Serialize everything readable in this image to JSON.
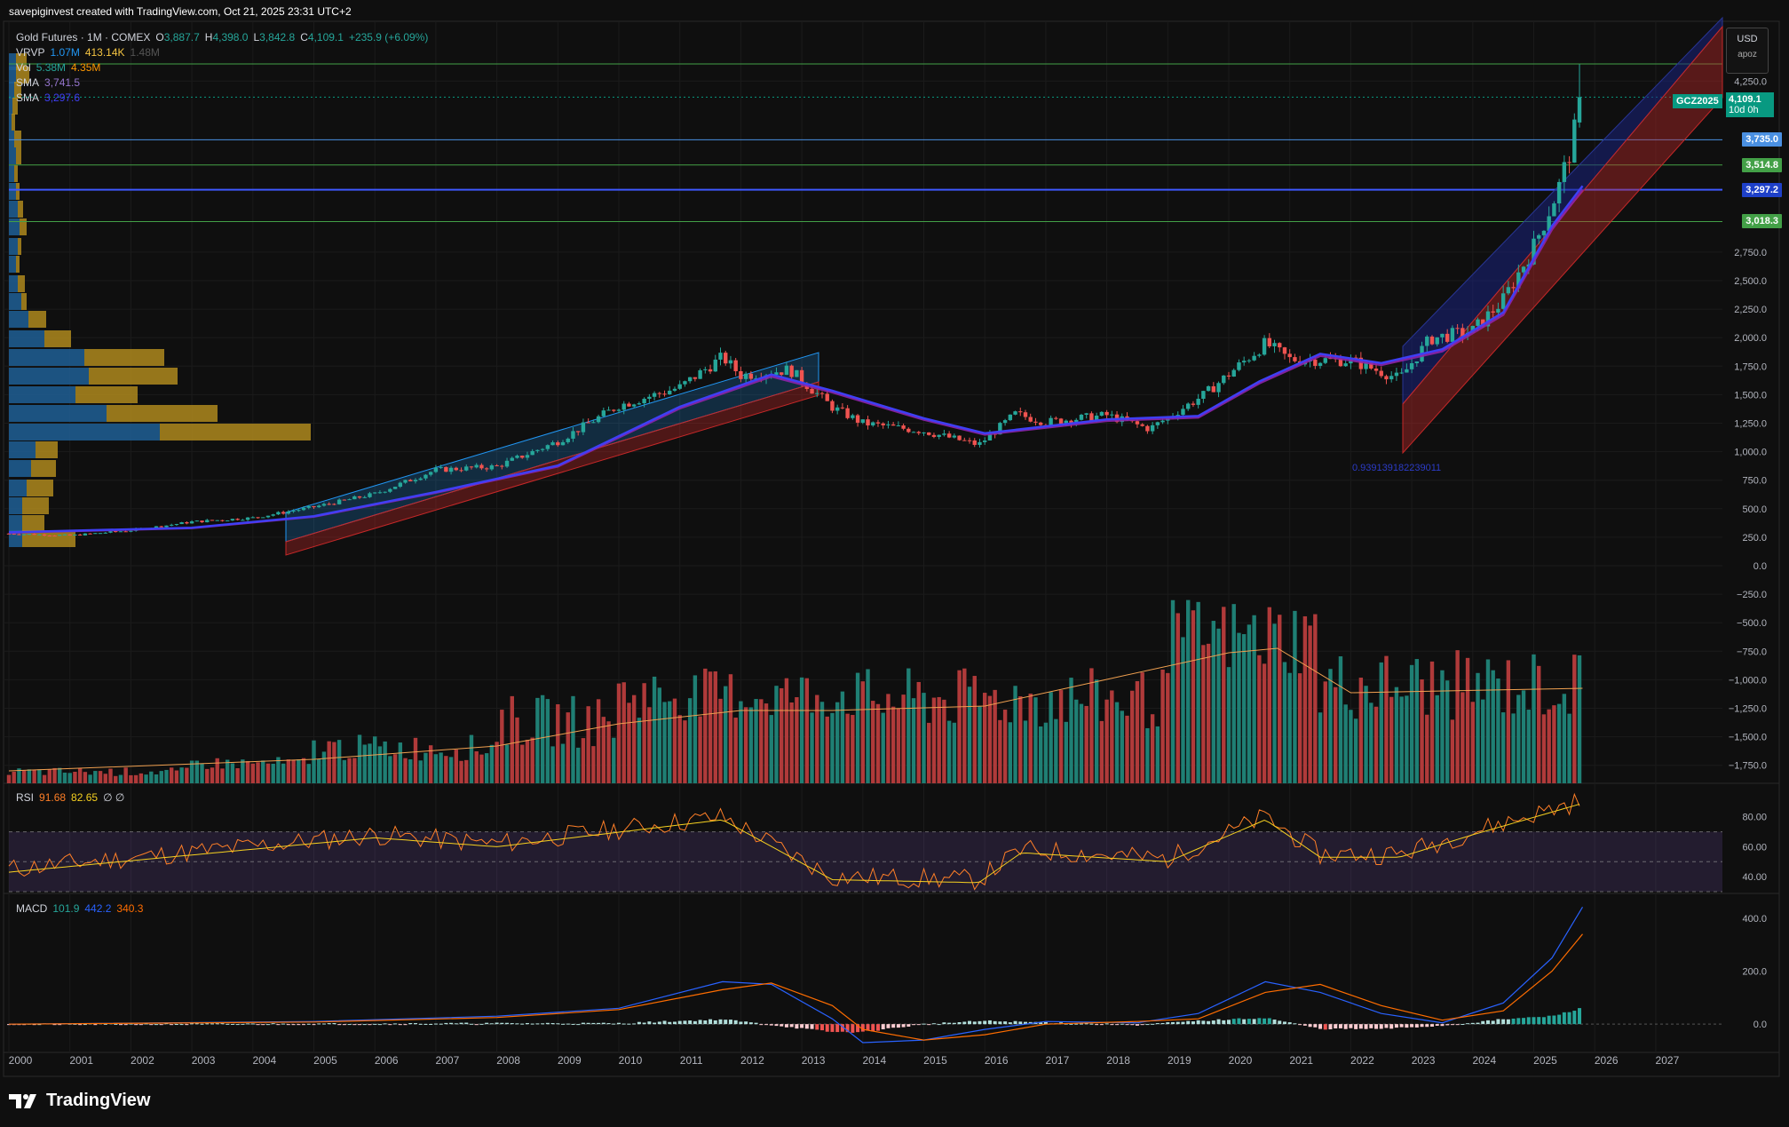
{
  "header": {
    "credit": "savepiginvest created with TradingView.com, Oct 21, 2025 23:31 UTC+2"
  },
  "legend": {
    "symbol": "Gold Futures · 1M · COMEX",
    "o_label": "O",
    "o": "3,887.7",
    "h_label": "H",
    "h": "4,398.0",
    "l_label": "L",
    "l": "3,842.8",
    "c_label": "C",
    "c": "4,109.1",
    "chg": "+235.9 (+6.09%)",
    "vrvp_label": "VRVP",
    "vrvp_a": "1.07M",
    "vrvp_b": "413.14K",
    "vrvp_c": "1.48M",
    "vol_label": "Vol",
    "vol_a": "5.38M",
    "vol_b": "4.35M",
    "sma1_label": "SMA",
    "sma1": "3,741.5",
    "sma2_label": "SMA",
    "sma2": "3,297.6",
    "rsi_label": "RSI",
    "rsi_a": "91.68",
    "rsi_b": "82.65",
    "rsi_c": "∅ ∅",
    "macd_label": "MACD",
    "macd_a": "101.9",
    "macd_b": "442.2",
    "macd_c": "340.3"
  },
  "currency": {
    "code": "USD",
    "sub": "apoz"
  },
  "price_labels": {
    "ticker": "GCZ2025",
    "last": "4,109.1",
    "countdown": "10d 0h",
    "lines": [
      {
        "value": "3,735.0",
        "color": "#4a90e2"
      },
      {
        "value": "3,514.8",
        "color": "#43a047"
      },
      {
        "value": "3,297.2",
        "color": "#1e40c8"
      },
      {
        "value": "3,018.3",
        "color": "#43a047"
      }
    ]
  },
  "fib_text": "0.939139182239011",
  "brand": {
    "name": "TradingView"
  },
  "colors": {
    "up": "#26a69a",
    "down": "#ef5350",
    "sma_blue": "#3f3ff5",
    "sma_purple": "#8e24aa",
    "vol_up": "#1f7f74",
    "vol_down": "#b03a3a",
    "rsi": "#ff7f27",
    "rsi_ma": "#f5d020",
    "macd": "#2962ff",
    "signal": "#ff6d00"
  },
  "chart_data": {
    "type": "candlestick",
    "title": "Gold Futures · 1M · COMEX",
    "x_ticks": [
      "2000",
      "2001",
      "2002",
      "2003",
      "2004",
      "2005",
      "2006",
      "2007",
      "2008",
      "2009",
      "2010",
      "2011",
      "2012",
      "2013",
      "2014",
      "2015",
      "2016",
      "2017",
      "2018",
      "2019",
      "2020",
      "2021",
      "2022",
      "2023",
      "2024",
      "2025",
      "2026",
      "2027"
    ],
    "price_axis_ticks": [
      "4,250.0",
      "2,750.0",
      "2,500.0",
      "2,250.0",
      "2,000.0",
      "1,750.0",
      "1,500.0",
      "1,250.0",
      "1,000.0",
      "750.0",
      "500.0",
      "250.0",
      "0.0",
      "−250.0",
      "−500.0",
      "−750.0",
      "−1,000.0",
      "−1,250.0",
      "−1,500.0",
      "−1,750.0"
    ],
    "ylim": [
      -1850,
      4500
    ],
    "price_series": {
      "x": [
        2000,
        2001,
        2002,
        2003,
        2004,
        2005,
        2006,
        2007,
        2008,
        2009,
        2010,
        2011,
        2011.7,
        2012,
        2012.8,
        2013.5,
        2014,
        2015,
        2015.9,
        2016.5,
        2017,
        2018,
        2018.7,
        2019,
        2019.6,
        2020.6,
        2021,
        2022,
        2022.8,
        2023.3,
        2024,
        2024.5,
        2025,
        2025.4,
        2025.6,
        2025.8
      ],
      "close": [
        282,
        265,
        310,
        385,
        420,
        515,
        630,
        840,
        870,
        1090,
        1405,
        1565,
        1830,
        1670,
        1720,
        1390,
        1250,
        1180,
        1060,
        1330,
        1260,
        1320,
        1200,
        1300,
        1500,
        1950,
        1810,
        1800,
        1640,
        1990,
        2060,
        2330,
        2800,
        3300,
        3650,
        4109
      ]
    },
    "sma_series": {
      "name": "SMA",
      "x": [
        2000,
        2003,
        2005,
        2007,
        2009,
        2011,
        2012.5,
        2013.5,
        2015,
        2016,
        2018,
        2019.5,
        2020.5,
        2021.5,
        2022.5,
        2023.5,
        2024.5,
        2025.3,
        2025.8
      ],
      "values": [
        290,
        330,
        430,
        640,
        870,
        1380,
        1660,
        1520,
        1280,
        1150,
        1270,
        1300,
        1600,
        1840,
        1760,
        1880,
        2200,
        2950,
        3297
      ]
    },
    "volume": {
      "x_start": 2000,
      "x_end": 2025.8,
      "relative": "low 2000-2002, rising 2005-2013, peak 2020"
    },
    "rsi": {
      "ticks": [
        "80.00",
        "60.00",
        "40.00"
      ],
      "ylim": [
        30,
        100
      ],
      "last": 91.68,
      "ma_last": 82.65
    },
    "macd": {
      "ticks": [
        "400.0",
        "200.0",
        "0.0"
      ],
      "ylim": [
        -90,
        480
      ],
      "macd_last": 442.2,
      "signal_last": 340.3,
      "hist_last": 101.9
    }
  }
}
